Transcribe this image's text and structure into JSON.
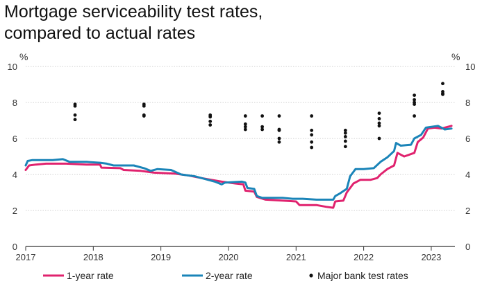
{
  "title_lines": [
    "Mortgage serviceability test rates,",
    "compared to actual rates"
  ],
  "colors": {
    "one_year": "#e0226e",
    "two_year": "#1a84b8",
    "test": "#111111",
    "axis": "#333333"
  },
  "chart_data": {
    "type": "line",
    "title": "Mortgage serviceability test rates, compared to actual rates",
    "ylabel_left": "%",
    "ylabel_right": "%",
    "ylim": [
      0,
      10
    ],
    "yticks": [
      0,
      2,
      4,
      6,
      8,
      10
    ],
    "xlim": [
      2017.0,
      2023.35
    ],
    "xticks": [
      2017,
      2018,
      2019,
      2020,
      2021,
      2022,
      2023
    ],
    "legend": {
      "position": "bottom"
    },
    "series": [
      {
        "name": "1-year rate",
        "kind": "line",
        "color": "#e0226e",
        "points": [
          [
            2017.0,
            4.25
          ],
          [
            2017.05,
            4.5
          ],
          [
            2017.15,
            4.55
          ],
          [
            2017.3,
            4.6
          ],
          [
            2017.6,
            4.6
          ],
          [
            2017.9,
            4.55
          ],
          [
            2018.1,
            4.55
          ],
          [
            2018.12,
            4.38
          ],
          [
            2018.4,
            4.35
          ],
          [
            2018.45,
            4.25
          ],
          [
            2018.7,
            4.2
          ],
          [
            2018.9,
            4.1
          ],
          [
            2019.2,
            4.05
          ],
          [
            2019.4,
            3.95
          ],
          [
            2019.6,
            3.8
          ],
          [
            2019.75,
            3.7
          ],
          [
            2019.9,
            3.6
          ],
          [
            2020.1,
            3.5
          ],
          [
            2020.22,
            3.45
          ],
          [
            2020.25,
            3.1
          ],
          [
            2020.38,
            3.05
          ],
          [
            2020.42,
            2.75
          ],
          [
            2020.55,
            2.6
          ],
          [
            2020.8,
            2.55
          ],
          [
            2021.0,
            2.5
          ],
          [
            2021.05,
            2.3
          ],
          [
            2021.3,
            2.3
          ],
          [
            2021.45,
            2.2
          ],
          [
            2021.55,
            2.15
          ],
          [
            2021.58,
            2.5
          ],
          [
            2021.7,
            2.55
          ],
          [
            2021.75,
            3.0
          ],
          [
            2021.85,
            3.5
          ],
          [
            2021.95,
            3.7
          ],
          [
            2022.1,
            3.7
          ],
          [
            2022.2,
            3.8
          ],
          [
            2022.25,
            4.0
          ],
          [
            2022.35,
            4.3
          ],
          [
            2022.45,
            4.5
          ],
          [
            2022.5,
            5.2
          ],
          [
            2022.55,
            5.1
          ],
          [
            2022.6,
            5.0
          ],
          [
            2022.75,
            5.2
          ],
          [
            2022.8,
            5.8
          ],
          [
            2022.88,
            6.05
          ],
          [
            2022.95,
            6.55
          ],
          [
            2023.05,
            6.6
          ],
          [
            2023.15,
            6.55
          ],
          [
            2023.3,
            6.7
          ]
        ]
      },
      {
        "name": "2-year rate",
        "kind": "line",
        "color": "#1a84b8",
        "points": [
          [
            2017.0,
            4.5
          ],
          [
            2017.03,
            4.75
          ],
          [
            2017.1,
            4.8
          ],
          [
            2017.4,
            4.8
          ],
          [
            2017.55,
            4.85
          ],
          [
            2017.65,
            4.7
          ],
          [
            2017.9,
            4.7
          ],
          [
            2018.1,
            4.65
          ],
          [
            2018.2,
            4.6
          ],
          [
            2018.3,
            4.5
          ],
          [
            2018.6,
            4.5
          ],
          [
            2018.75,
            4.35
          ],
          [
            2018.85,
            4.2
          ],
          [
            2018.95,
            4.3
          ],
          [
            2019.15,
            4.25
          ],
          [
            2019.3,
            4.0
          ],
          [
            2019.5,
            3.9
          ],
          [
            2019.7,
            3.7
          ],
          [
            2019.8,
            3.6
          ],
          [
            2019.9,
            3.45
          ],
          [
            2019.95,
            3.55
          ],
          [
            2020.2,
            3.6
          ],
          [
            2020.25,
            3.55
          ],
          [
            2020.28,
            3.25
          ],
          [
            2020.38,
            3.2
          ],
          [
            2020.42,
            2.8
          ],
          [
            2020.5,
            2.7
          ],
          [
            2020.8,
            2.7
          ],
          [
            2020.95,
            2.65
          ],
          [
            2021.1,
            2.65
          ],
          [
            2021.3,
            2.6
          ],
          [
            2021.5,
            2.6
          ],
          [
            2021.55,
            2.6
          ],
          [
            2021.58,
            2.8
          ],
          [
            2021.65,
            2.95
          ],
          [
            2021.75,
            3.2
          ],
          [
            2021.8,
            3.9
          ],
          [
            2021.88,
            4.3
          ],
          [
            2022.0,
            4.3
          ],
          [
            2022.15,
            4.35
          ],
          [
            2022.25,
            4.7
          ],
          [
            2022.35,
            4.95
          ],
          [
            2022.45,
            5.3
          ],
          [
            2022.48,
            5.75
          ],
          [
            2022.55,
            5.6
          ],
          [
            2022.7,
            5.65
          ],
          [
            2022.75,
            6.0
          ],
          [
            2022.85,
            6.2
          ],
          [
            2022.92,
            6.6
          ],
          [
            2023.1,
            6.7
          ],
          [
            2023.2,
            6.5
          ],
          [
            2023.3,
            6.55
          ]
        ]
      },
      {
        "name": "Major bank test rates",
        "kind": "scatter",
        "color": "#111111",
        "points": [
          [
            2017.73,
            7.05
          ],
          [
            2017.73,
            7.3
          ],
          [
            2017.73,
            7.8
          ],
          [
            2017.73,
            7.9
          ],
          [
            2018.75,
            7.25
          ],
          [
            2018.75,
            7.3
          ],
          [
            2018.75,
            7.8
          ],
          [
            2018.75,
            7.9
          ],
          [
            2019.73,
            6.75
          ],
          [
            2019.73,
            6.95
          ],
          [
            2019.73,
            7.2
          ],
          [
            2019.73,
            7.3
          ],
          [
            2020.25,
            6.5
          ],
          [
            2020.25,
            6.65
          ],
          [
            2020.25,
            6.8
          ],
          [
            2020.25,
            7.25
          ],
          [
            2020.5,
            6.5
          ],
          [
            2020.5,
            6.65
          ],
          [
            2020.5,
            7.25
          ],
          [
            2020.75,
            5.8
          ],
          [
            2020.75,
            6.0
          ],
          [
            2020.75,
            6.45
          ],
          [
            2020.75,
            6.5
          ],
          [
            2020.75,
            7.25
          ],
          [
            2021.23,
            5.5
          ],
          [
            2021.23,
            5.8
          ],
          [
            2021.23,
            6.2
          ],
          [
            2021.23,
            6.45
          ],
          [
            2021.23,
            7.25
          ],
          [
            2021.73,
            5.55
          ],
          [
            2021.73,
            5.85
          ],
          [
            2021.73,
            6.1
          ],
          [
            2021.73,
            6.3
          ],
          [
            2021.73,
            6.45
          ],
          [
            2022.23,
            6.0
          ],
          [
            2022.23,
            6.7
          ],
          [
            2022.23,
            6.85
          ],
          [
            2022.23,
            7.1
          ],
          [
            2022.23,
            7.4
          ],
          [
            2022.75,
            7.25
          ],
          [
            2022.75,
            7.9
          ],
          [
            2022.75,
            8.0
          ],
          [
            2022.75,
            8.15
          ],
          [
            2022.75,
            8.4
          ],
          [
            2023.17,
            8.45
          ],
          [
            2023.17,
            8.5
          ],
          [
            2023.17,
            8.6
          ],
          [
            2023.17,
            9.05
          ]
        ]
      }
    ]
  }
}
